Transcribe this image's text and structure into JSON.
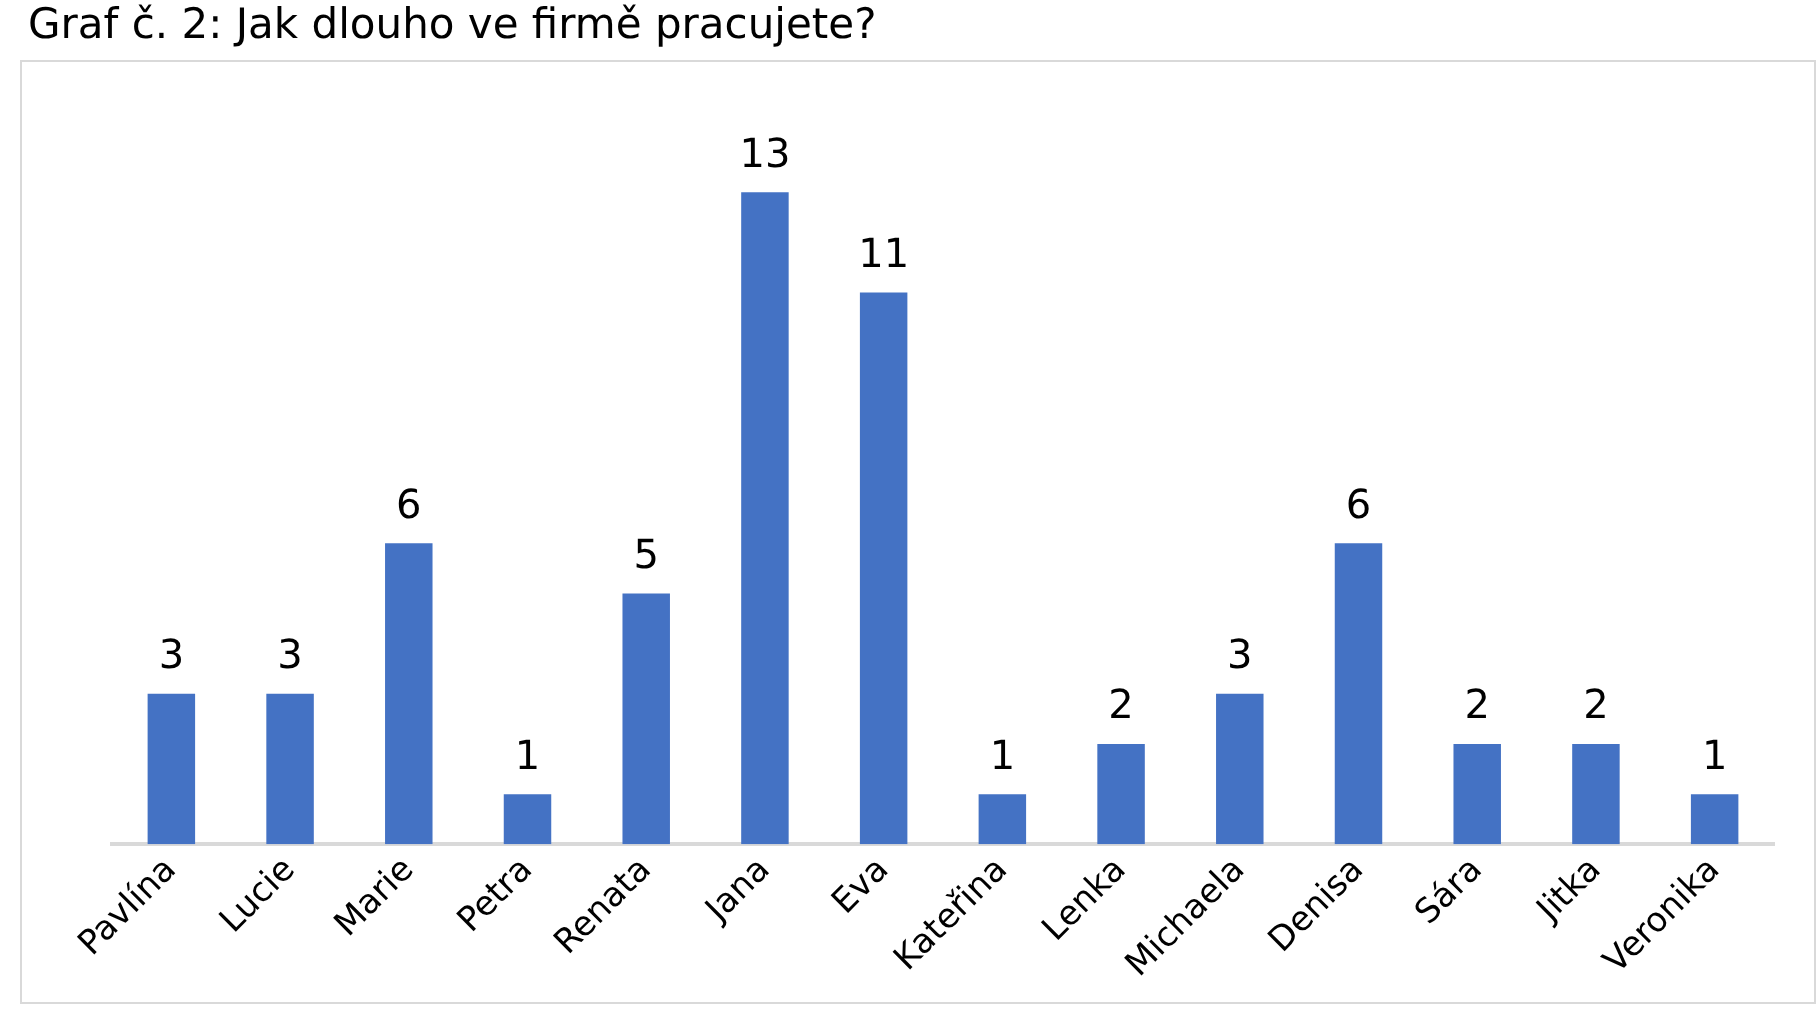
{
  "chart_data": {
    "type": "bar",
    "title": "Graf č. 2: Jak dlouho ve firmě pracujete?",
    "categories": [
      "Pavlína",
      "Lucie",
      "Marie",
      "Petra",
      "Renata",
      "Jana",
      "Eva",
      "Kateřina",
      "Lenka",
      "Michaela",
      "Denisa",
      "Sára",
      "Jitka",
      "Veronika"
    ],
    "values": [
      3,
      3,
      6,
      1,
      5,
      13,
      11,
      1,
      2,
      3,
      6,
      2,
      2,
      1
    ],
    "color": "#4472c4",
    "data_labels": true,
    "grid": false,
    "legend": false
  }
}
